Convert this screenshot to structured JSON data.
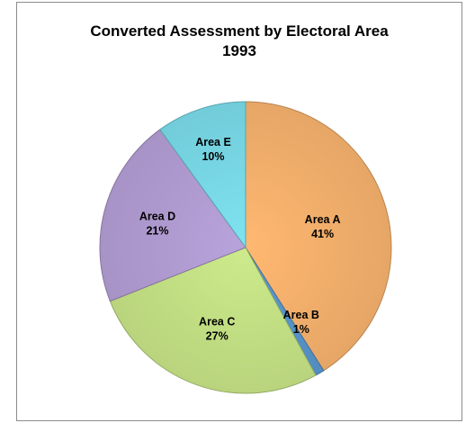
{
  "chart_data": {
    "type": "pie",
    "title": "Converted Assessment by Electoral Area",
    "subtitle": "1993",
    "slices": [
      {
        "label": "Area A",
        "percent_label": "41%",
        "value": 41,
        "color": "#ffb871"
      },
      {
        "label": "Area B",
        "percent_label": "1%",
        "value": 1,
        "color": "#5b9bd5"
      },
      {
        "label": "Area C",
        "percent_label": "27%",
        "value": 27,
        "color": "#cdeb8b"
      },
      {
        "label": "Area D",
        "percent_label": "21%",
        "value": 21,
        "color": "#b9a3dc"
      },
      {
        "label": "Area E",
        "percent_label": "10%",
        "value": 10,
        "color": "#7fe3f1"
      }
    ],
    "legend": "none"
  }
}
